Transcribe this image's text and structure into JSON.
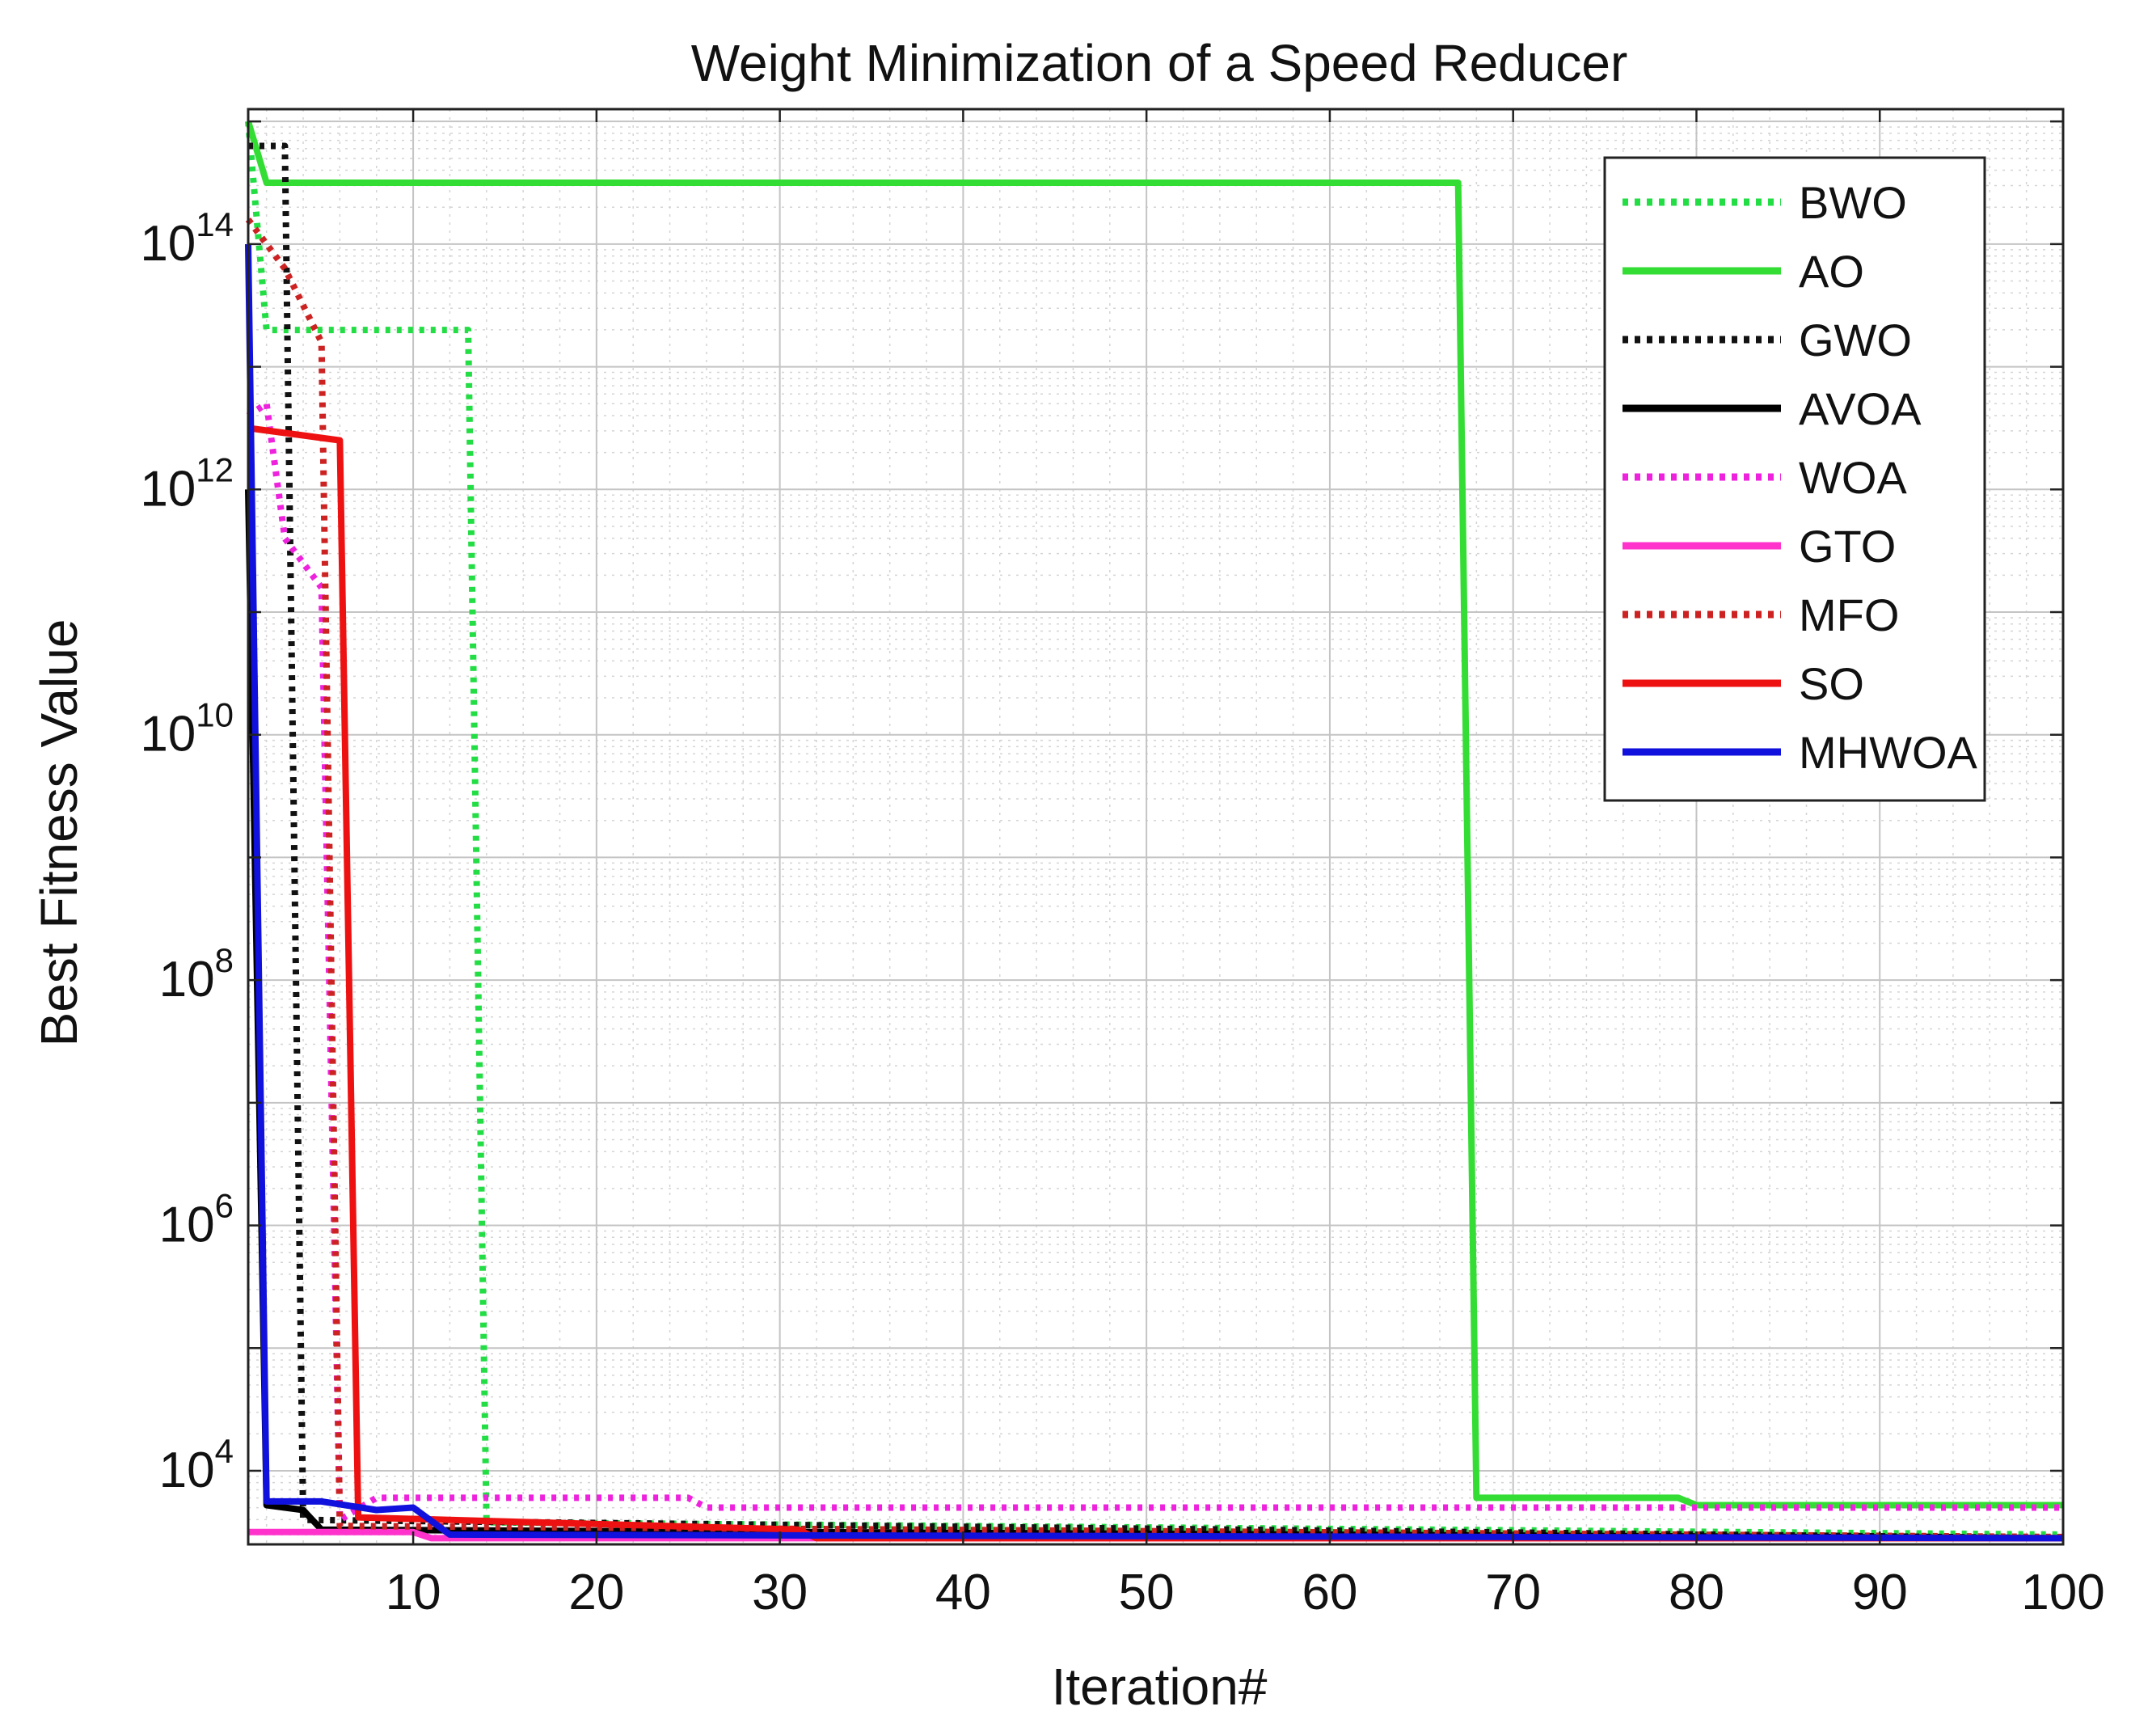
{
  "chart_data": {
    "type": "line",
    "title": "Weight Minimization of a Speed Reducer",
    "xlabel": "Iteration#",
    "ylabel": "Best Fitness Value",
    "xlim": [
      1,
      100
    ],
    "ylim_log10": [
      3.4,
      15.1
    ],
    "yscale": "log",
    "grid": true,
    "legend_position": "top-right",
    "x_ticks": [
      {
        "value": 10,
        "label": "10"
      },
      {
        "value": 20,
        "label": "20"
      },
      {
        "value": 30,
        "label": "30"
      },
      {
        "value": 40,
        "label": "40"
      },
      {
        "value": 50,
        "label": "50"
      },
      {
        "value": 60,
        "label": "60"
      },
      {
        "value": 70,
        "label": "70"
      },
      {
        "value": 80,
        "label": "80"
      },
      {
        "value": 90,
        "label": "90"
      },
      {
        "value": 100,
        "label": "100"
      }
    ],
    "y_ticks": [
      {
        "log10": 4,
        "base": "10",
        "exp": "4"
      },
      {
        "log10": 6,
        "base": "10",
        "exp": "6"
      },
      {
        "log10": 8,
        "base": "10",
        "exp": "8"
      },
      {
        "log10": 10,
        "base": "10",
        "exp": "10"
      },
      {
        "log10": 12,
        "base": "10",
        "exp": "12"
      },
      {
        "log10": 14,
        "base": "10",
        "exp": "14"
      }
    ],
    "series": [
      {
        "name": "BWO",
        "color": "#22dd44",
        "style": "dotted",
        "points_log10": [
          [
            1,
            15.0
          ],
          [
            2,
            13.3
          ],
          [
            13,
            13.3
          ],
          [
            14,
            3.58
          ],
          [
            100,
            3.48
          ]
        ]
      },
      {
        "name": "AO",
        "color": "#33dd33",
        "style": "solid",
        "points_log10": [
          [
            1,
            15.0
          ],
          [
            2,
            14.5
          ],
          [
            67,
            14.5
          ],
          [
            68,
            3.78
          ],
          [
            79,
            3.78
          ],
          [
            80,
            3.72
          ],
          [
            100,
            3.72
          ]
        ]
      },
      {
        "name": "GWO",
        "color": "#111111",
        "style": "dotted",
        "points_log10": [
          [
            1,
            14.8
          ],
          [
            3,
            14.8
          ],
          [
            4,
            3.6
          ],
          [
            100,
            3.45
          ]
        ]
      },
      {
        "name": "AVOA",
        "color": "#000000",
        "style": "solid",
        "points_log10": [
          [
            1,
            12.0
          ],
          [
            2,
            3.72
          ],
          [
            4,
            3.68
          ],
          [
            5,
            3.52
          ],
          [
            100,
            3.45
          ]
        ]
      },
      {
        "name": "WOA",
        "color": "#ee22dd",
        "style": "dotted",
        "points_log10": [
          [
            1,
            12.6
          ],
          [
            2,
            12.7
          ],
          [
            3,
            11.6
          ],
          [
            5,
            11.2
          ],
          [
            6,
            3.6
          ],
          [
            8,
            3.78
          ],
          [
            25,
            3.78
          ],
          [
            26,
            3.7
          ],
          [
            100,
            3.7
          ]
        ]
      },
      {
        "name": "GTO",
        "color": "#ff33cc",
        "style": "solid",
        "points_log10": [
          [
            1,
            3.5
          ],
          [
            10,
            3.5
          ],
          [
            11,
            3.45
          ],
          [
            100,
            3.45
          ]
        ]
      },
      {
        "name": "MFO",
        "color": "#cc2222",
        "style": "dotted",
        "points_log10": [
          [
            1,
            14.2
          ],
          [
            3,
            13.8
          ],
          [
            5,
            13.2
          ],
          [
            6,
            3.55
          ],
          [
            100,
            3.46
          ]
        ]
      },
      {
        "name": "SO",
        "color": "#ee1111",
        "style": "solid",
        "points_log10": [
          [
            1,
            12.5
          ],
          [
            6,
            12.4
          ],
          [
            7,
            3.62
          ],
          [
            31,
            3.52
          ],
          [
            32,
            3.45
          ],
          [
            100,
            3.45
          ]
        ]
      },
      {
        "name": "MHWOA",
        "color": "#1111dd",
        "style": "solid",
        "points_log10": [
          [
            1,
            14.0
          ],
          [
            2,
            3.75
          ],
          [
            5,
            3.75
          ],
          [
            8,
            3.68
          ],
          [
            10,
            3.7
          ],
          [
            12,
            3.48
          ],
          [
            100,
            3.45
          ]
        ]
      }
    ]
  }
}
